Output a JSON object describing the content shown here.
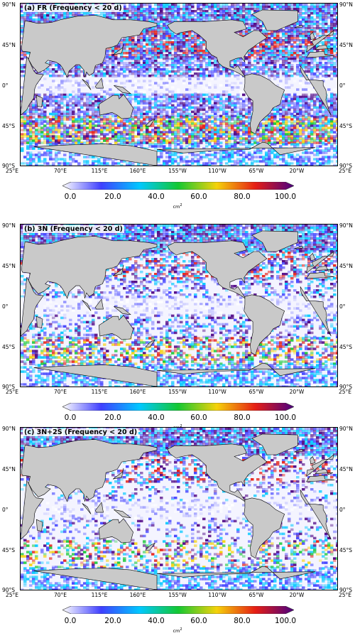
{
  "panels": [
    {
      "title": "(a) FR (Frequency < 20 d)",
      "intensity": "high"
    },
    {
      "title": "(b) 3N (Frequency < 20 d)",
      "intensity": "medium"
    },
    {
      "title": "(c) 3N+2S (Frequency < 20 d)",
      "intensity": "low"
    }
  ],
  "lat_labels": {
    "left": [
      "90°N",
      "45°N",
      "0°",
      "45°S",
      "90°S"
    ],
    "right": [
      "90°N",
      "45°N",
      "0°",
      "45°S",
      "90°S"
    ]
  },
  "lon_labels": [
    "25°E",
    "70°E",
    "115°E",
    "160°E",
    "155°W",
    "110°W",
    "65°W",
    "20°W",
    "25°E"
  ],
  "colorbar": {
    "ticks": [
      "0.0",
      "20.0",
      "40.0",
      "60.0",
      "80.0",
      "100.0"
    ],
    "unit_base": "cm",
    "unit_exp": "2",
    "colors": [
      "#ffffff",
      "#3f3fff",
      "#00c8ff",
      "#14c832",
      "#f5d20a",
      "#e61e14",
      "#4b0082"
    ]
  },
  "map_colors": {
    "land": "#c9c9c9",
    "coast": "#000000"
  }
}
